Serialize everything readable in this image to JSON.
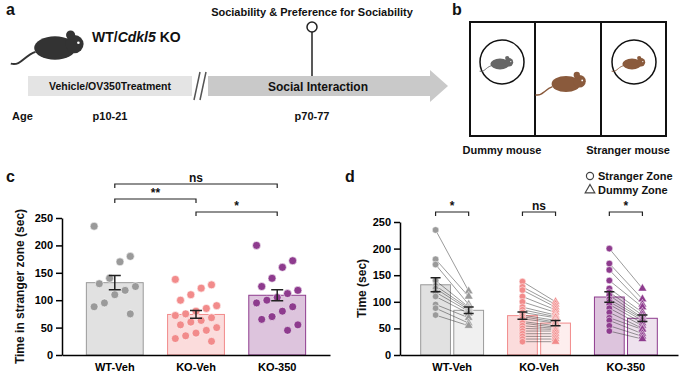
{
  "panel_labels": [
    "a",
    "b",
    "c",
    "d"
  ],
  "timeline": {
    "genotype": [
      "WT/",
      "Cdkl5",
      " KO"
    ],
    "test": "Sociability & Preference for Sociability",
    "treatment": "Vehicle/OV350Treatment",
    "phase": "Social Interaction",
    "age_label": "Age",
    "ages": [
      "p10-21",
      "p70-77"
    ]
  },
  "chambers": {
    "left": "Dummy mouse",
    "right": "Stranger mouse"
  },
  "chart_data": [
    {
      "type": "bar",
      "ylabel": "Time in stranger zone (sec)",
      "categories": [
        "WT-Veh",
        "KO-Veh",
        "KO-350"
      ],
      "values": [
        132,
        74,
        109
      ],
      "errors": [
        13,
        7,
        10
      ],
      "colors": [
        "#9a9a9a",
        "#f28b8b",
        "#8e3b8e"
      ],
      "points": [
        [
          235,
          180,
          170,
          140,
          130,
          125,
          118,
          110,
          95,
          88,
          75
        ],
        [
          138,
          128,
          122,
          110,
          100,
          90,
          85,
          80,
          75,
          72,
          68,
          63,
          60,
          55,
          50,
          45,
          40,
          35,
          30,
          25
        ],
        [
          200,
          172,
          160,
          140,
          125,
          118,
          112,
          105,
          100,
          95,
          88,
          80,
          70,
          65,
          55,
          45
        ]
      ],
      "ylim": [
        0,
        250
      ],
      "yticks": [
        0,
        50,
        100,
        150,
        200,
        250
      ],
      "annotations": [
        {
          "text": "**",
          "between": [
            0,
            1
          ]
        },
        {
          "text": "*",
          "between": [
            1,
            2
          ]
        },
        {
          "text": "ns",
          "between": [
            0,
            2
          ]
        }
      ]
    },
    {
      "type": "bar",
      "ylabel": "Time (sec)",
      "categories": [
        "WT-Veh",
        "KO-Veh",
        "KO-350"
      ],
      "colors": [
        "#9a9a9a",
        "#f28b8b",
        "#8e3b8e"
      ],
      "legend": "upper right",
      "series": [
        {
          "name": "Stranger Zone",
          "marker": "circle",
          "values": [
            132,
            74,
            109
          ],
          "errors": [
            13,
            7,
            10
          ],
          "points": [
            [
              235,
              180,
              170,
              140,
              130,
              125,
              118,
              110,
              95,
              88,
              75
            ],
            [
              138,
              128,
              122,
              110,
              100,
              90,
              85,
              80,
              75,
              72,
              68,
              63,
              60,
              55,
              50,
              45,
              40,
              35,
              30,
              25
            ],
            [
              200,
              172,
              160,
              140,
              125,
              118,
              112,
              105,
              100,
              95,
              88,
              80,
              70,
              65,
              55,
              45
            ]
          ]
        },
        {
          "name": "Dummy Zone",
          "marker": "triangle",
          "values": [
            84,
            60,
            69
          ],
          "errors": [
            6,
            5,
            6
          ],
          "points": [
            [
              120,
              110,
              95,
              90,
              88,
              85,
              82,
              78,
              70,
              60,
              55
            ],
            [
              100,
              95,
              90,
              85,
              80,
              75,
              72,
              70,
              65,
              62,
              60,
              55,
              52,
              50,
              48,
              45,
              40,
              35,
              30,
              25
            ],
            [
              125,
              105,
              95,
              90,
              80,
              75,
              70,
              68,
              65,
              60,
              55,
              50,
              48,
              40,
              35,
              30
            ]
          ]
        }
      ],
      "ylim": [
        0,
        250
      ],
      "yticks": [
        0,
        50,
        100,
        150,
        200,
        250
      ],
      "annotations": [
        {
          "text": "*",
          "category": 0
        },
        {
          "text": "ns",
          "category": 1
        },
        {
          "text": "*",
          "category": 2
        }
      ]
    }
  ]
}
